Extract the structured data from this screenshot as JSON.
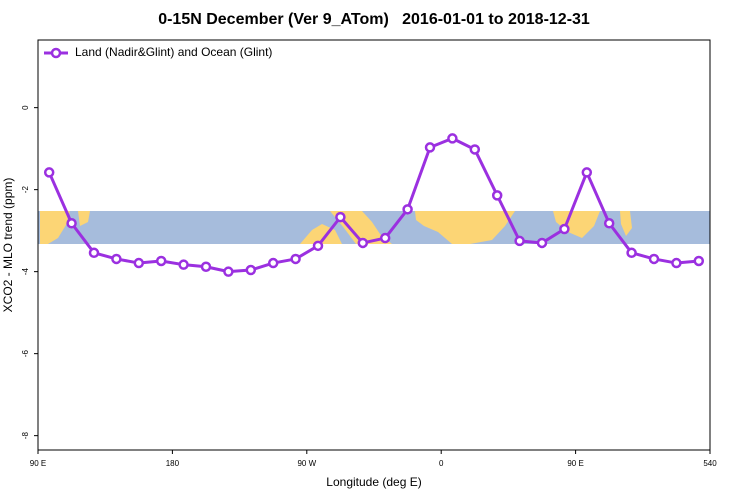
{
  "chart_data": {
    "type": "line",
    "title": "0-15N December (Ver 9_ATom)   2016-01-01 to 2018-12-31",
    "xlabel": "Longitude (deg E)",
    "ylabel": "XCO2 - MLO trend (ppm)",
    "x": [
      97.5,
      112.5,
      127.5,
      142.5,
      157.5,
      172.5,
      187.5,
      202.5,
      217.5,
      232.5,
      247.5,
      262.5,
      277.5,
      292.5,
      307.5,
      322.5,
      337.5,
      352.5,
      367.5,
      382.5,
      397.5,
      412.5,
      427.5,
      442.5,
      457.5,
      472.5,
      487.5,
      502.5,
      517.5,
      532.5
    ],
    "series": [
      {
        "name": "Land (Nadir&Glint) and Ocean (Glint)",
        "color": "#9b30e0",
        "values": [
          -1.58,
          -2.82,
          -3.54,
          -3.69,
          -3.79,
          -3.74,
          -3.83,
          -3.88,
          -4.0,
          -3.96,
          -3.79,
          -3.69,
          -3.37,
          -2.67,
          -3.3,
          -3.18,
          -2.48,
          -0.97,
          -0.75,
          -1.02,
          -2.14,
          -3.25,
          -3.3,
          -2.96,
          -1.58,
          -2.82,
          -3.54,
          -3.69,
          -3.79,
          -3.74
        ]
      }
    ],
    "xlim": [
      90,
      540
    ],
    "xticks": [
      {
        "value": 90,
        "label": "90 E"
      },
      180,
      {
        "value": 270,
        "label": "90 W"
      },
      {
        "value": 360,
        "label": "0"
      },
      {
        "value": 450,
        "label": "90 E"
      },
      540
    ],
    "ylim": [
      -8.35,
      1.65
    ],
    "yticks": [
      0,
      -2,
      -4,
      -6,
      -8
    ],
    "legend": "upper left"
  }
}
